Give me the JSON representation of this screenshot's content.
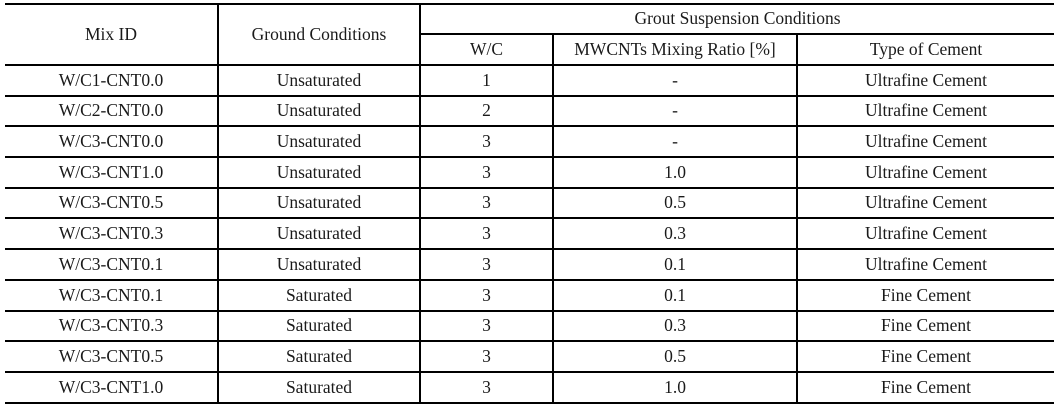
{
  "table": {
    "title_semantic": "grout-mix-conditions-table",
    "headers": {
      "mix_id": "Mix ID",
      "ground_conditions": "Ground Conditions",
      "grout_suspension_conditions": "Grout Suspension Conditions",
      "wc": "W/C",
      "mwcnts_mixing_ratio": "MWCNTs Mixing Ratio [%]",
      "type_of_cement": "Type of Cement"
    },
    "rows": [
      [
        "W/C1-CNT0.0",
        "Unsaturated",
        "1",
        "-",
        "Ultrafine Cement"
      ],
      [
        "W/C2-CNT0.0",
        "Unsaturated",
        "2",
        "-",
        "Ultrafine Cement"
      ],
      [
        "W/C3-CNT0.0",
        "Unsaturated",
        "3",
        "-",
        "Ultrafine Cement"
      ],
      [
        "W/C3-CNT1.0",
        "Unsaturated",
        "3",
        "1.0",
        "Ultrafine Cement"
      ],
      [
        "W/C3-CNT0.5",
        "Unsaturated",
        "3",
        "0.5",
        "Ultrafine Cement"
      ],
      [
        "W/C3-CNT0.3",
        "Unsaturated",
        "3",
        "0.3",
        "Ultrafine Cement"
      ],
      [
        "W/C3-CNT0.1",
        "Unsaturated",
        "3",
        "0.1",
        "Ultrafine Cement"
      ],
      [
        "W/C3-CNT0.1",
        "Saturated",
        "3",
        "0.1",
        "Fine Cement"
      ],
      [
        "W/C3-CNT0.3",
        "Saturated",
        "3",
        "0.3",
        "Fine Cement"
      ],
      [
        "W/C3-CNT0.5",
        "Saturated",
        "3",
        "0.5",
        "Fine Cement"
      ],
      [
        "W/C3-CNT1.0",
        "Saturated",
        "3",
        "1.0",
        "Fine Cement"
      ]
    ],
    "colors": {
      "border": "#000000",
      "text": "#1a1a1a",
      "background": "#ffffff"
    }
  }
}
